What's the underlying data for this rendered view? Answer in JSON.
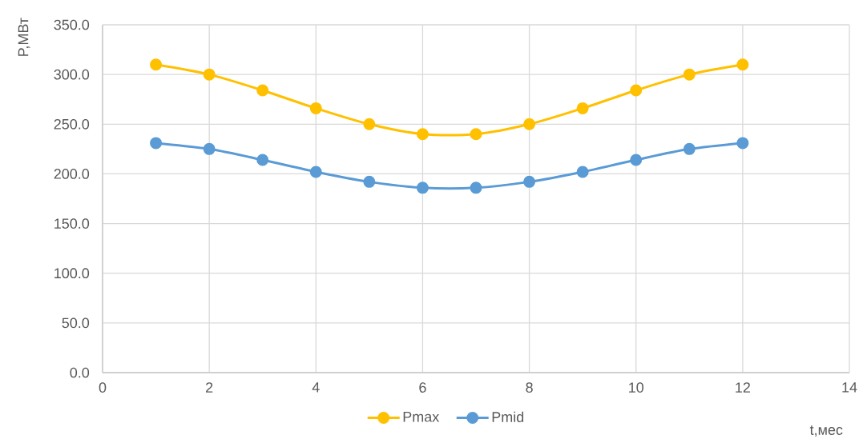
{
  "chart_data": {
    "type": "line",
    "xlabel": "t,мес",
    "ylabel": "P,МВт",
    "x": [
      1,
      2,
      3,
      4,
      5,
      6,
      7,
      8,
      9,
      10,
      11,
      12
    ],
    "series": [
      {
        "name": "Pmax",
        "color": "#ffc000",
        "values": [
          310,
          300,
          284,
          266,
          250,
          240,
          240,
          250,
          266,
          284,
          300,
          310
        ]
      },
      {
        "name": "Pmid",
        "color": "#5b9bd5",
        "values": [
          231,
          225,
          214,
          202,
          192,
          186,
          186,
          192,
          202,
          214,
          225,
          231
        ]
      }
    ],
    "xlim": [
      0,
      14
    ],
    "xticks": [
      0,
      2,
      4,
      6,
      8,
      10,
      12,
      14
    ],
    "ylim": [
      0,
      350
    ],
    "yticks": [
      {
        "value": 0,
        "label": "0.0"
      },
      {
        "value": 50,
        "label": "50.0"
      },
      {
        "value": 100,
        "label": "100.0"
      },
      {
        "value": 150,
        "label": "150.0"
      },
      {
        "value": 200,
        "label": "200.0"
      },
      {
        "value": 250,
        "label": "250.0"
      },
      {
        "value": 300,
        "label": "300.0"
      },
      {
        "value": 350,
        "label": "350.0"
      }
    ],
    "grid": true,
    "legend": "bottom",
    "marker": "circle",
    "line_style": "solid"
  }
}
